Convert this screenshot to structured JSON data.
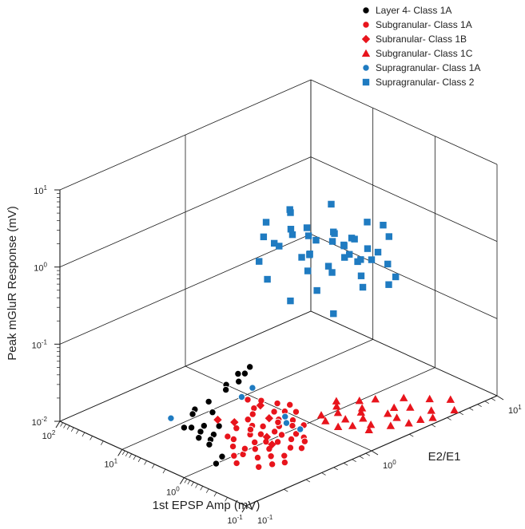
{
  "chart_data": {
    "type": "scatter",
    "title": "",
    "xlabel": "1st EPSP Amp (mV)",
    "ylabel": "E2/E1",
    "zlabel": "Peak mGluR Response (mV)",
    "x_scale": "log",
    "y_scale": "log",
    "z_scale": "log",
    "xlim": [
      0.1,
      100
    ],
    "ylim": [
      0.1,
      10
    ],
    "zlim": [
      0.01,
      10
    ],
    "x_tick_labels": [
      {
        "base": "10",
        "exp": "-1",
        "value": 0.1
      },
      {
        "base": "10",
        "exp": "0",
        "value": 1
      },
      {
        "base": "10",
        "exp": "1",
        "value": 10
      },
      {
        "base": "10",
        "exp": "2",
        "value": 100
      }
    ],
    "y_tick_labels": [
      {
        "base": "10",
        "exp": "-1",
        "value": 0.1
      },
      {
        "base": "10",
        "exp": "0",
        "value": 1
      },
      {
        "base": "10",
        "exp": "1",
        "value": 10
      }
    ],
    "z_tick_labels": [
      {
        "base": "10",
        "exp": "-2",
        "value": 0.01
      },
      {
        "base": "10",
        "exp": "-1",
        "value": 0.1
      },
      {
        "base": "10",
        "exp": "0",
        "value": 1
      },
      {
        "base": "10",
        "exp": "1",
        "value": 10
      }
    ],
    "grid": true,
    "legend_position": "top-right",
    "series": [
      {
        "name": "Layer 4- Class 1A",
        "color": "#000000",
        "marker": "circle",
        "points": [
          [
            15,
            0.6,
            0.01
          ],
          [
            14,
            0.45,
            0.01
          ],
          [
            12,
            0.4,
            0.01
          ],
          [
            9,
            0.5,
            0.01
          ],
          [
            8,
            0.28,
            0.01
          ],
          [
            7,
            0.3,
            0.01
          ],
          [
            6,
            0.35,
            0.01
          ],
          [
            5,
            0.3,
            0.01
          ],
          [
            4,
            0.26,
            0.01
          ],
          [
            4.5,
            0.4,
            0.01
          ],
          [
            3.5,
            0.32,
            0.01
          ],
          [
            3,
            0.28,
            0.01
          ],
          [
            2.5,
            0.25,
            0.01
          ],
          [
            25,
            1.5,
            0.01
          ],
          [
            20,
            1.2,
            0.01
          ],
          [
            22,
            1.0,
            0.01
          ],
          [
            30,
            1.8,
            0.01
          ],
          [
            18,
            0.9,
            0.01
          ],
          [
            28,
            1.4,
            0.01
          ],
          [
            1.2,
            0.22,
            0.01
          ],
          [
            1.0,
            0.18,
            0.01
          ]
        ]
      },
      {
        "name": "Subgranular- Class 1A",
        "color": "#e8141c",
        "marker": "circle",
        "points": [
          [
            5,
            0.8,
            0.01
          ],
          [
            4,
            0.7,
            0.01
          ],
          [
            3.5,
            0.6,
            0.01
          ],
          [
            3,
            0.9,
            0.01
          ],
          [
            2.5,
            0.55,
            0.01
          ],
          [
            2,
            0.6,
            0.01
          ],
          [
            2,
            0.8,
            0.01
          ],
          [
            1.8,
            0.45,
            0.01
          ],
          [
            1.5,
            0.5,
            0.01
          ],
          [
            1.5,
            0.7,
            0.01
          ],
          [
            1.3,
            0.6,
            0.01
          ],
          [
            1.2,
            0.4,
            0.01
          ],
          [
            1,
            0.45,
            0.01
          ],
          [
            1,
            0.6,
            0.01
          ],
          [
            0.9,
            0.35,
            0.01
          ],
          [
            0.8,
            0.5,
            0.01
          ],
          [
            0.7,
            0.4,
            0.01
          ],
          [
            0.6,
            0.3,
            0.01
          ],
          [
            0.5,
            0.35,
            0.01
          ],
          [
            0.5,
            0.5,
            0.01
          ],
          [
            0.4,
            0.25,
            0.01
          ],
          [
            0.4,
            0.4,
            0.01
          ],
          [
            0.35,
            0.3,
            0.01
          ],
          [
            0.3,
            0.35,
            0.01
          ],
          [
            2.5,
            1.0,
            0.01
          ],
          [
            2,
            1.1,
            0.01
          ],
          [
            1.5,
            0.9,
            0.01
          ],
          [
            1.2,
            0.8,
            0.01
          ],
          [
            1,
            0.9,
            0.01
          ],
          [
            0.8,
            0.7,
            0.01
          ],
          [
            0.7,
            0.6,
            0.01
          ],
          [
            0.6,
            0.7,
            0.01
          ],
          [
            0.5,
            0.65,
            0.01
          ],
          [
            0.4,
            0.55,
            0.01
          ],
          [
            3,
            1.2,
            0.01
          ],
          [
            6,
            1.0,
            0.01
          ],
          [
            4,
            1.1,
            0.01
          ],
          [
            2,
            0.35,
            0.01
          ],
          [
            1.5,
            0.3,
            0.01
          ],
          [
            3,
            0.45,
            0.01
          ],
          [
            2.5,
            0.35,
            0.01
          ],
          [
            8,
            0.9,
            0.01
          ],
          [
            1,
            0.25,
            0.01
          ],
          [
            0.7,
            0.22,
            0.01
          ],
          [
            2.2,
            0.5,
            0.01
          ],
          [
            1.8,
            0.75,
            0.01
          ],
          [
            0.9,
            0.28,
            0.01
          ],
          [
            1.1,
            0.32,
            0.01
          ]
        ]
      },
      {
        "name": "Subranular- Class 1B",
        "color": "#e8141c",
        "marker": "diamond",
        "points": [
          [
            5,
            0.9,
            0.01
          ],
          [
            2.5,
            0.75,
            0.01
          ],
          [
            4,
            0.5,
            0.01
          ],
          [
            6,
            0.45,
            0.01
          ],
          [
            1.2,
            0.5,
            0.01
          ],
          [
            0.8,
            0.45,
            0.01
          ]
        ]
      },
      {
        "name": "Subgranular- Class 1C",
        "color": "#e8141c",
        "marker": "triangle",
        "points": [
          [
            1,
            2.5,
            0.01
          ],
          [
            0.8,
            3,
            0.01
          ],
          [
            0.6,
            2,
            0.01
          ],
          [
            0.5,
            4,
            0.01
          ],
          [
            0.4,
            3,
            0.01
          ],
          [
            0.3,
            5,
            0.01
          ],
          [
            0.25,
            2.5,
            0.01
          ],
          [
            0.2,
            6,
            0.01
          ],
          [
            0.18,
            4,
            0.01
          ],
          [
            0.15,
            3,
            0.01
          ],
          [
            1.2,
            1.8,
            0.01
          ],
          [
            0.9,
            1.6,
            0.01
          ],
          [
            0.7,
            2.2,
            0.01
          ],
          [
            0.6,
            1.5,
            0.01
          ],
          [
            0.45,
            1.8,
            0.01
          ],
          [
            0.35,
            2.5,
            0.01
          ],
          [
            0.3,
            1.7,
            0.01
          ],
          [
            0.25,
            1.5,
            0.01
          ],
          [
            1.5,
            2,
            0.01
          ],
          [
            1.1,
            1.3,
            0.01
          ],
          [
            0.8,
            1.2,
            0.01
          ],
          [
            0.5,
            1.2,
            0.01
          ],
          [
            0.4,
            1.4,
            0.01
          ],
          [
            0.2,
            2,
            0.01
          ],
          [
            0.16,
            2.5,
            0.01
          ],
          [
            0.13,
            3.5,
            0.01
          ],
          [
            0.12,
            5,
            0.01
          ],
          [
            0.3,
            3.5,
            0.01
          ]
        ]
      },
      {
        "name": "Supragranular- Class 1A",
        "color": "#1f7bc1",
        "marker": "circle",
        "points": [
          [
            12,
            1.2,
            0.01
          ],
          [
            10,
            0.9,
            0.01
          ],
          [
            2,
            0.9,
            0.01
          ],
          [
            1.5,
            0.8,
            0.01
          ],
          [
            0.9,
            0.8,
            0.01
          ],
          [
            15,
            0.3,
            0.01
          ]
        ]
      },
      {
        "name": "Supragranular- Class 2",
        "color": "#1f7bc1",
        "marker": "square",
        "points": [
          [
            2,
            1.0,
            2.5
          ],
          [
            1.5,
            1.2,
            2.0
          ],
          [
            1.2,
            0.8,
            3.0
          ],
          [
            1,
            1.0,
            1.5
          ],
          [
            0.9,
            1.5,
            2.2
          ],
          [
            0.8,
            0.9,
            1.8
          ],
          [
            0.7,
            1.3,
            2.8
          ],
          [
            0.6,
            1.1,
            1.2
          ],
          [
            0.5,
            0.8,
            3.5
          ],
          [
            0.45,
            1.4,
            1.6
          ],
          [
            0.4,
            1.2,
            2.4
          ],
          [
            0.35,
            0.9,
            1.4
          ],
          [
            0.3,
            1.6,
            2.0
          ],
          [
            0.28,
            1.0,
            3.2
          ],
          [
            0.25,
            1.3,
            1.1
          ],
          [
            0.22,
            0.9,
            2.6
          ],
          [
            2.5,
            1.5,
            1.8
          ],
          [
            1.8,
            0.7,
            2.2
          ],
          [
            1.4,
            1.8,
            1.3
          ],
          [
            1.1,
            0.6,
            2.7
          ],
          [
            0.85,
            2.0,
            1.6
          ],
          [
            0.65,
            0.7,
            2.1
          ],
          [
            0.55,
            1.8,
            1.0
          ],
          [
            0.38,
            0.6,
            1.9
          ],
          [
            0.32,
            2.0,
            1.5
          ],
          [
            0.2,
            1.2,
            0.9
          ],
          [
            3,
            1.2,
            3.4
          ],
          [
            2.2,
            2.2,
            2.9
          ],
          [
            1.6,
            0.5,
            1.7
          ],
          [
            0.75,
            2.5,
            2.3
          ],
          [
            0.5,
            0.5,
            0.8
          ],
          [
            0.27,
            0.6,
            1.2
          ],
          [
            0.18,
            1.8,
            1.4
          ],
          [
            0.15,
            1.0,
            2.6
          ],
          [
            3.5,
            0.8,
            1.9
          ],
          [
            4,
            1.4,
            2.5
          ],
          [
            1.3,
            2.6,
            1.1
          ],
          [
            0.95,
            0.45,
            1.3
          ],
          [
            0.42,
            2.8,
            1.7
          ],
          [
            0.24,
            2.4,
            0.7
          ],
          [
            0.2,
            0.7,
            0.6
          ],
          [
            5,
            1.0,
            2.2
          ],
          [
            0.12,
            1.5,
            1.0
          ],
          [
            0.1,
            1.0,
            3.0
          ],
          [
            0.6,
            3.0,
            2.0
          ]
        ]
      }
    ]
  }
}
